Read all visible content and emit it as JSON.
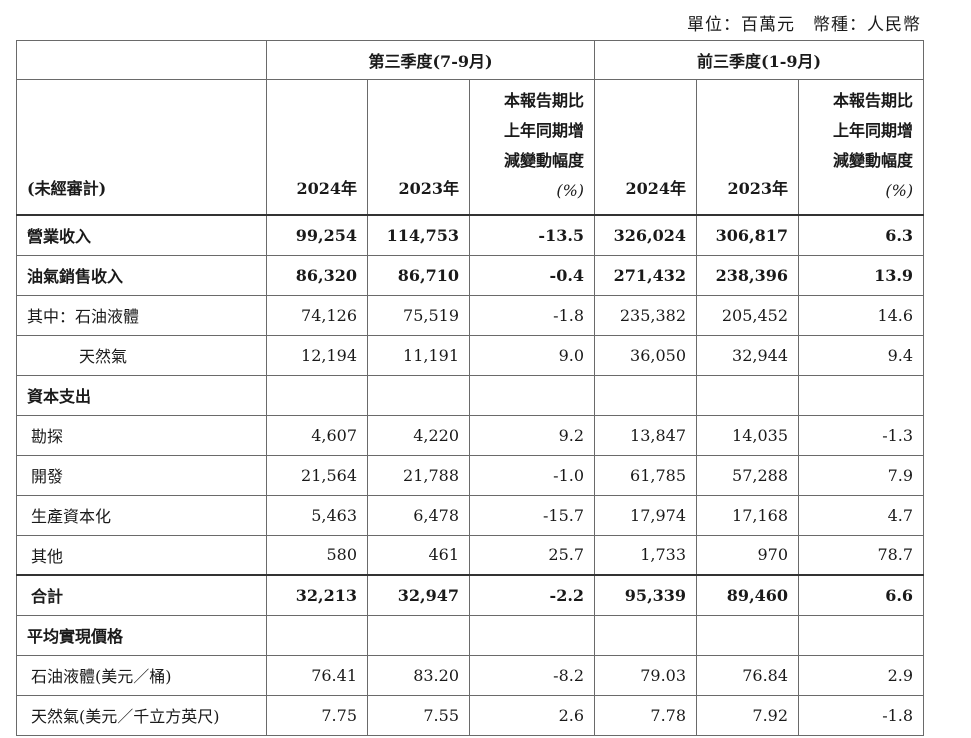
{
  "unit_note": "單位：百萬元　幣種：人民幣",
  "groups": [
    "第三季度(7-9月)",
    "前三季度(1-9月)"
  ],
  "header": {
    "unaudited": "(未經審計)",
    "y2024": "2024年",
    "y2023": "2023年",
    "change_line1": "本報告期比",
    "change_line2": "上年同期增",
    "change_line3": "減變動幅度",
    "change_unit": "(%)"
  },
  "rows": [
    {
      "label": "營業收入",
      "bold": true,
      "indent": 0,
      "v": [
        "99,254",
        "114,753",
        "-13.5",
        "326,024",
        "306,817",
        "6.3"
      ]
    },
    {
      "label": "油氣銷售收入",
      "bold": true,
      "indent": 0,
      "v": [
        "86,320",
        "86,710",
        "-0.4",
        "271,432",
        "238,396",
        "13.9"
      ]
    },
    {
      "label": "其中：石油液體",
      "bold": false,
      "indent": 0,
      "v": [
        "74,126",
        "75,519",
        "-1.8",
        "235,382",
        "205,452",
        "14.6"
      ]
    },
    {
      "label": "天然氣",
      "bold": false,
      "indent": 2,
      "v": [
        "12,194",
        "11,191",
        "9.0",
        "36,050",
        "32,944",
        "9.4"
      ]
    },
    {
      "label": "資本支出",
      "bold": true,
      "indent": 0,
      "v": [
        "",
        "",
        "",
        "",
        "",
        ""
      ]
    },
    {
      "label": "勘探",
      "bold": false,
      "indent": 1,
      "v": [
        "4,607",
        "4,220",
        "9.2",
        "13,847",
        "14,035",
        "-1.3"
      ]
    },
    {
      "label": "開發",
      "bold": false,
      "indent": 1,
      "v": [
        "21,564",
        "21,788",
        "-1.0",
        "61,785",
        "57,288",
        "7.9"
      ]
    },
    {
      "label": "生產資本化",
      "bold": false,
      "indent": 1,
      "v": [
        "5,463",
        "6,478",
        "-15.7",
        "17,974",
        "17,168",
        "4.7"
      ]
    },
    {
      "label": "其他",
      "bold": false,
      "indent": 1,
      "v": [
        "580",
        "461",
        "25.7",
        "1,733",
        "970",
        "78.7"
      ]
    },
    {
      "label": "合計",
      "bold": true,
      "indent": 1,
      "total": true,
      "v": [
        "32,213",
        "32,947",
        "-2.2",
        "95,339",
        "89,460",
        "6.6"
      ]
    },
    {
      "label": "平均實現價格",
      "bold": true,
      "indent": 0,
      "v": [
        "",
        "",
        "",
        "",
        "",
        ""
      ]
    },
    {
      "label": "石油液體(美元／桶)",
      "bold": false,
      "indent": 1,
      "v": [
        "76.41",
        "83.20",
        "-8.2",
        "79.03",
        "76.84",
        "2.9"
      ]
    },
    {
      "label": "天然氣(美元／千立方英尺)",
      "bold": false,
      "indent": 1,
      "v": [
        "7.75",
        "7.55",
        "2.6",
        "7.78",
        "7.92",
        "-1.8"
      ]
    }
  ]
}
